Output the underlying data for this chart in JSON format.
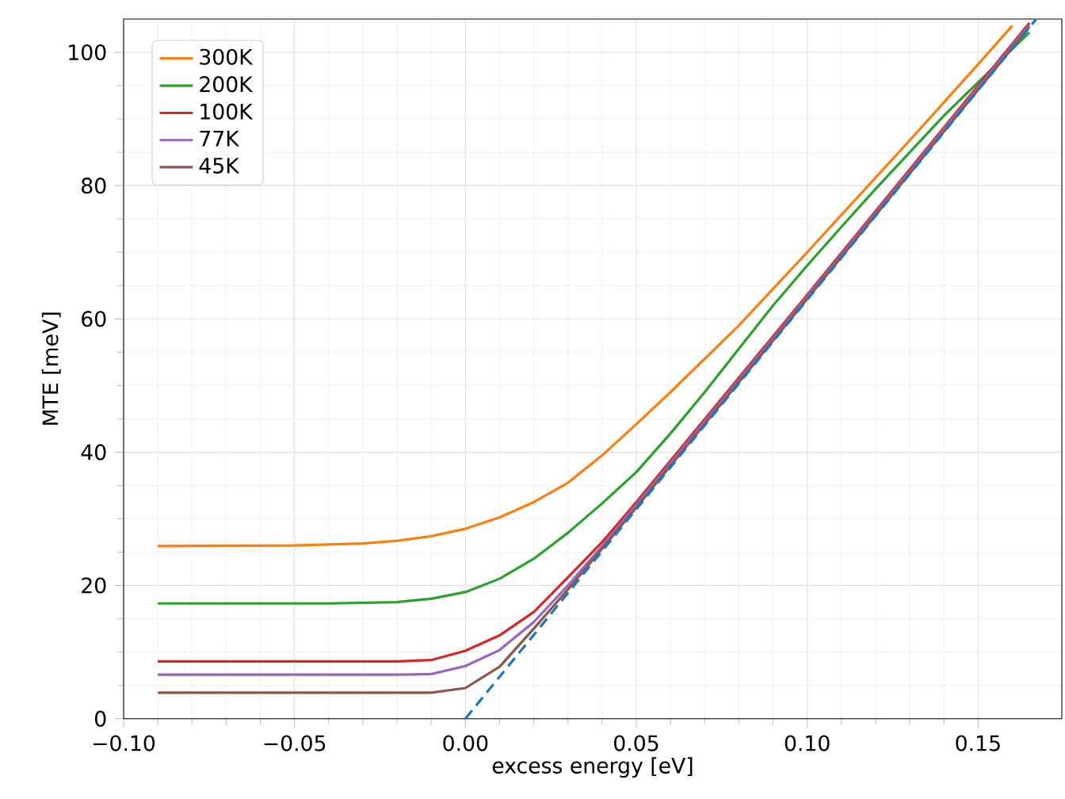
{
  "chart_data": {
    "type": "line",
    "xlabel": "excess energy [eV]",
    "ylabel": "MTE [meV]",
    "xlim": [
      -0.1,
      0.1745
    ],
    "ylim": [
      0,
      105
    ],
    "xticks": [
      {
        "value": -0.1,
        "label": "−0.10"
      },
      {
        "value": -0.05,
        "label": "−0.05"
      },
      {
        "value": 0,
        "label": "0.00"
      },
      {
        "value": 0.05,
        "label": "0.05"
      },
      {
        "value": 0.1,
        "label": "0.10"
      },
      {
        "value": 0.15,
        "label": "0.15"
      }
    ],
    "yticks": [
      0,
      20,
      40,
      60,
      80,
      100
    ],
    "grid": true,
    "legend": "top left",
    "series": [
      {
        "name": "300K",
        "color": "#ff7f0e",
        "x": [
          -0.09,
          -0.05,
          -0.03,
          -0.02,
          -0.01,
          0,
          0.01,
          0.02,
          0.03,
          0.04,
          0.05,
          0.06,
          0.07,
          0.08,
          0.09,
          0.1,
          0.11,
          0.12,
          0.13,
          0.14,
          0.15,
          0.16
        ],
        "values": [
          25.9,
          26.0,
          26.3,
          26.7,
          27.4,
          28.5,
          30.2,
          32.5,
          35.4,
          39.5,
          44.2,
          49,
          54,
          59,
          64.5,
          70,
          75.6,
          81.2,
          86.8,
          92.5,
          98.2,
          104
        ]
      },
      {
        "name": "200K",
        "color": "#2ca02c",
        "x": [
          -0.09,
          -0.04,
          -0.02,
          -0.01,
          0,
          0.01,
          0.02,
          0.03,
          0.04,
          0.05,
          0.06,
          0.07,
          0.08,
          0.09,
          0.1,
          0.11,
          0.12,
          0.13,
          0.14,
          0.15,
          0.16,
          0.165
        ],
        "values": [
          17.3,
          17.3,
          17.5,
          18.0,
          19.0,
          21.0,
          24.0,
          27.9,
          32.3,
          37.0,
          42.8,
          49,
          55.5,
          62,
          68,
          73.8,
          79.5,
          85,
          90.5,
          95.5,
          100.5,
          103
        ]
      },
      {
        "name": "100K",
        "color": "#d62728",
        "x": [
          -0.09,
          -0.02,
          -0.01,
          0,
          0.01,
          0.02,
          0.03,
          0.04,
          0.05,
          0.1,
          0.165
        ],
        "values": [
          8.6,
          8.6,
          8.8,
          10.2,
          12.5,
          16,
          21.2,
          26.5,
          32.5,
          63.6,
          104.4
        ]
      },
      {
        "name": "77K",
        "color": "#9467bd",
        "x": [
          -0.09,
          -0.02,
          -0.01,
          0,
          0.01,
          0.02,
          0.03,
          0.04,
          0.05,
          0.1,
          0.165
        ],
        "values": [
          6.6,
          6.6,
          6.7,
          7.9,
          10.3,
          14.5,
          20,
          25.9,
          32.1,
          63.3,
          104.1
        ]
      },
      {
        "name": "45K",
        "color": "#8c564b",
        "x": [
          -0.09,
          -0.01,
          0,
          0.01,
          0.02,
          0.03,
          0.04,
          0.05,
          0.1,
          0.165
        ],
        "values": [
          3.9,
          3.9,
          4.6,
          7.8,
          13.5,
          19.4,
          25.5,
          31.7,
          63,
          103.8
        ]
      },
      {
        "color": "#1f77b4",
        "line_style": "dashed",
        "x": [
          0,
          0.167
        ],
        "values": [
          0,
          105
        ]
      }
    ]
  }
}
